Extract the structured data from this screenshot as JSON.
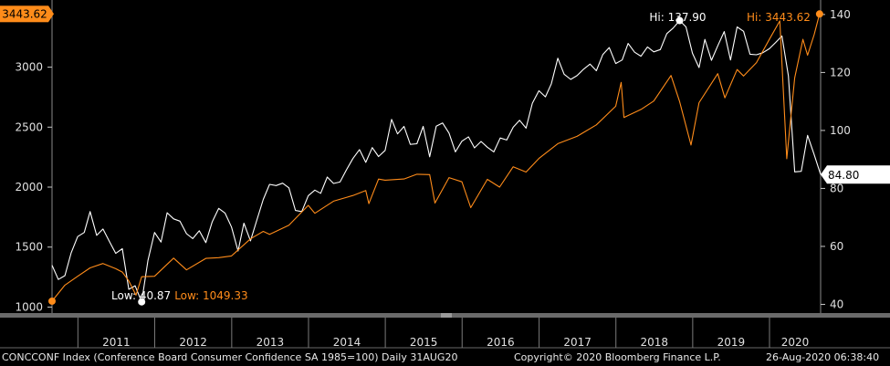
{
  "chart_data": {
    "type": "line",
    "x_range": [
      "2010-08-31",
      "2020-08-31"
    ],
    "left_axis": {
      "ticks": [
        1000,
        1500,
        2000,
        2500,
        3000
      ],
      "ylim": [
        950,
        3560
      ]
    },
    "right_axis": {
      "ticks": [
        40,
        60,
        80,
        100,
        120,
        140
      ],
      "ylim": [
        37,
        145
      ]
    },
    "x_ticks": [
      "2011",
      "2012",
      "2013",
      "2014",
      "2015",
      "2016",
      "2017",
      "2018",
      "2019",
      "2020"
    ],
    "series": [
      {
        "axis": "right",
        "color": "#ffffff",
        "points": [
          [
            "2010-08-31",
            53.5
          ],
          [
            "2010-09-30",
            48.6
          ],
          [
            "2010-10-31",
            49.9
          ],
          [
            "2010-11-30",
            57.8
          ],
          [
            "2010-12-31",
            63.4
          ],
          [
            "2011-01-31",
            64.8
          ],
          [
            "2011-02-28",
            72.0
          ],
          [
            "2011-03-31",
            63.8
          ],
          [
            "2011-04-30",
            66.0
          ],
          [
            "2011-05-31",
            61.7
          ],
          [
            "2011-06-30",
            57.6
          ],
          [
            "2011-07-31",
            59.2
          ],
          [
            "2011-08-31",
            45.2
          ],
          [
            "2011-09-30",
            46.4
          ],
          [
            "2011-10-31",
            40.87
          ],
          [
            "2011-11-30",
            55.2
          ],
          [
            "2011-12-31",
            64.8
          ],
          [
            "2012-01-31",
            61.5
          ],
          [
            "2012-02-29",
            71.6
          ],
          [
            "2012-03-31",
            69.5
          ],
          [
            "2012-04-30",
            68.7
          ],
          [
            "2012-05-31",
            64.4
          ],
          [
            "2012-06-30",
            62.7
          ],
          [
            "2012-07-31",
            65.4
          ],
          [
            "2012-08-31",
            61.3
          ],
          [
            "2012-09-30",
            68.4
          ],
          [
            "2012-10-31",
            73.1
          ],
          [
            "2012-11-30",
            71.5
          ],
          [
            "2012-12-31",
            66.7
          ],
          [
            "2013-01-31",
            58.4
          ],
          [
            "2013-02-28",
            68.0
          ],
          [
            "2013-03-31",
            61.9
          ],
          [
            "2013-04-30",
            69.0
          ],
          [
            "2013-05-31",
            76.2
          ],
          [
            "2013-06-30",
            81.4
          ],
          [
            "2013-07-31",
            81.0
          ],
          [
            "2013-08-31",
            81.8
          ],
          [
            "2013-09-30",
            80.2
          ],
          [
            "2013-10-31",
            72.4
          ],
          [
            "2013-11-30",
            72.0
          ],
          [
            "2013-12-31",
            77.5
          ],
          [
            "2014-01-31",
            79.4
          ],
          [
            "2014-02-28",
            78.3
          ],
          [
            "2014-03-31",
            83.9
          ],
          [
            "2014-04-30",
            81.7
          ],
          [
            "2014-05-31",
            82.2
          ],
          [
            "2014-06-30",
            86.4
          ],
          [
            "2014-07-31",
            90.3
          ],
          [
            "2014-08-31",
            93.4
          ],
          [
            "2014-09-30",
            89.0
          ],
          [
            "2014-10-31",
            94.1
          ],
          [
            "2014-11-30",
            91.0
          ],
          [
            "2014-12-31",
            93.1
          ],
          [
            "2015-01-31",
            103.8
          ],
          [
            "2015-02-28",
            98.8
          ],
          [
            "2015-03-31",
            101.4
          ],
          [
            "2015-04-30",
            95.2
          ],
          [
            "2015-05-31",
            95.4
          ],
          [
            "2015-06-30",
            101.4
          ],
          [
            "2015-07-31",
            90.9
          ],
          [
            "2015-08-31",
            101.5
          ],
          [
            "2015-09-30",
            102.6
          ],
          [
            "2015-10-31",
            99.1
          ],
          [
            "2015-11-30",
            92.6
          ],
          [
            "2015-12-31",
            96.3
          ],
          [
            "2016-01-31",
            97.8
          ],
          [
            "2016-02-29",
            94.0
          ],
          [
            "2016-03-31",
            96.2
          ],
          [
            "2016-04-30",
            94.2
          ],
          [
            "2016-05-31",
            92.6
          ],
          [
            "2016-06-30",
            97.4
          ],
          [
            "2016-07-31",
            96.7
          ],
          [
            "2016-08-31",
            101.1
          ],
          [
            "2016-09-30",
            103.5
          ],
          [
            "2016-10-31",
            100.8
          ],
          [
            "2016-11-30",
            109.4
          ],
          [
            "2016-12-31",
            113.7
          ],
          [
            "2017-01-31",
            111.6
          ],
          [
            "2017-02-28",
            116.1
          ],
          [
            "2017-03-31",
            124.9
          ],
          [
            "2017-04-30",
            119.4
          ],
          [
            "2017-05-31",
            117.6
          ],
          [
            "2017-06-30",
            118.9
          ],
          [
            "2017-07-31",
            121.1
          ],
          [
            "2017-08-31",
            122.9
          ],
          [
            "2017-09-30",
            120.6
          ],
          [
            "2017-10-31",
            126.2
          ],
          [
            "2017-11-30",
            128.6
          ],
          [
            "2017-12-31",
            123.1
          ],
          [
            "2018-01-31",
            124.3
          ],
          [
            "2018-02-28",
            130.0
          ],
          [
            "2018-03-31",
            127.0
          ],
          [
            "2018-04-30",
            125.6
          ],
          [
            "2018-05-31",
            128.8
          ],
          [
            "2018-06-30",
            127.1
          ],
          [
            "2018-07-31",
            127.9
          ],
          [
            "2018-08-31",
            133.4
          ],
          [
            "2018-09-30",
            135.3
          ],
          [
            "2018-10-31",
            137.9
          ],
          [
            "2018-11-30",
            135.7
          ],
          [
            "2018-12-31",
            126.6
          ],
          [
            "2019-01-31",
            121.7
          ],
          [
            "2019-02-28",
            131.4
          ],
          [
            "2019-03-31",
            124.2
          ],
          [
            "2019-04-30",
            129.2
          ],
          [
            "2019-05-31",
            134.1
          ],
          [
            "2019-06-30",
            124.3
          ],
          [
            "2019-07-31",
            135.7
          ],
          [
            "2019-08-31",
            134.2
          ],
          [
            "2019-09-30",
            126.3
          ],
          [
            "2019-10-31",
            126.1
          ],
          [
            "2019-11-30",
            126.8
          ],
          [
            "2019-12-31",
            128.2
          ],
          [
            "2020-01-31",
            130.4
          ],
          [
            "2020-02-29",
            132.6
          ],
          [
            "2020-03-31",
            118.8
          ],
          [
            "2020-04-30",
            85.7
          ],
          [
            "2020-05-31",
            85.9
          ],
          [
            "2020-06-30",
            98.3
          ],
          [
            "2020-07-31",
            91.7
          ],
          [
            "2020-08-31",
            84.8
          ]
        ]
      },
      {
        "axis": "left",
        "color": "#ff8c1a",
        "points": [
          [
            "2010-08-31",
            1049.33
          ],
          [
            "2010-10-31",
            1183
          ],
          [
            "2010-12-31",
            1257
          ],
          [
            "2011-02-28",
            1327
          ],
          [
            "2011-04-30",
            1363
          ],
          [
            "2011-06-30",
            1320
          ],
          [
            "2011-07-31",
            1292
          ],
          [
            "2011-08-31",
            1218
          ],
          [
            "2011-10-04",
            1099
          ],
          [
            "2011-10-31",
            1253
          ],
          [
            "2011-12-31",
            1257
          ],
          [
            "2012-03-31",
            1408
          ],
          [
            "2012-05-31",
            1310
          ],
          [
            "2012-08-31",
            1406
          ],
          [
            "2012-10-31",
            1412
          ],
          [
            "2012-12-31",
            1426
          ],
          [
            "2013-03-31",
            1569
          ],
          [
            "2013-05-31",
            1631
          ],
          [
            "2013-06-30",
            1606
          ],
          [
            "2013-09-30",
            1682
          ],
          [
            "2013-12-31",
            1848
          ],
          [
            "2014-01-31",
            1782
          ],
          [
            "2014-04-30",
            1883
          ],
          [
            "2014-07-31",
            1930
          ],
          [
            "2014-09-30",
            1972
          ],
          [
            "2014-10-15",
            1862
          ],
          [
            "2014-11-30",
            2067
          ],
          [
            "2014-12-31",
            2058
          ],
          [
            "2015-03-31",
            2068
          ],
          [
            "2015-05-31",
            2107
          ],
          [
            "2015-07-31",
            2104
          ],
          [
            "2015-08-25",
            1867
          ],
          [
            "2015-10-31",
            2079
          ],
          [
            "2015-12-31",
            2044
          ],
          [
            "2016-02-11",
            1829
          ],
          [
            "2016-04-30",
            2065
          ],
          [
            "2016-06-27",
            2000
          ],
          [
            "2016-08-31",
            2170
          ],
          [
            "2016-10-31",
            2126
          ],
          [
            "2016-12-31",
            2239
          ],
          [
            "2017-03-31",
            2362
          ],
          [
            "2017-06-30",
            2423
          ],
          [
            "2017-09-30",
            2519
          ],
          [
            "2017-12-31",
            2674
          ],
          [
            "2018-01-26",
            2873
          ],
          [
            "2018-02-08",
            2581
          ],
          [
            "2018-04-30",
            2648
          ],
          [
            "2018-06-30",
            2718
          ],
          [
            "2018-09-20",
            2931
          ],
          [
            "2018-10-31",
            2711
          ],
          [
            "2018-12-24",
            2351
          ],
          [
            "2019-01-31",
            2704
          ],
          [
            "2019-04-30",
            2946
          ],
          [
            "2019-06-03",
            2744
          ],
          [
            "2019-07-31",
            2980
          ],
          [
            "2019-08-31",
            2926
          ],
          [
            "2019-10-31",
            3038
          ],
          [
            "2019-12-31",
            3231
          ],
          [
            "2020-02-19",
            3386
          ],
          [
            "2020-03-23",
            2237
          ],
          [
            "2020-04-30",
            2912
          ],
          [
            "2020-06-08",
            3232
          ],
          [
            "2020-06-30",
            3100
          ],
          [
            "2020-07-31",
            3271
          ],
          [
            "2020-08-26",
            3443.62
          ]
        ]
      }
    ],
    "annotations": {
      "white_hi": {
        "label": "Hi:",
        "value": "137.90"
      },
      "white_low": {
        "label": "Low:",
        "value": "40.87"
      },
      "orange_hi": {
        "label": "Hi:",
        "value": "3443.62"
      },
      "orange_low": {
        "label": "Low:",
        "value": "1049.33"
      },
      "orange_last": "3443.62",
      "white_last": "84.80"
    }
  },
  "footer": {
    "description": "CONCCONF Index (Conference Board Consumer Confidence SA 1985=100)  Daily 31AUG20",
    "copyright": "Copyright© 2020 Bloomberg Finance L.P.",
    "timestamp": "26-Aug-2020 06:38:40"
  },
  "colors": {
    "white_series": "#ffffff",
    "orange_series": "#ff8c1a",
    "background": "#000000"
  }
}
